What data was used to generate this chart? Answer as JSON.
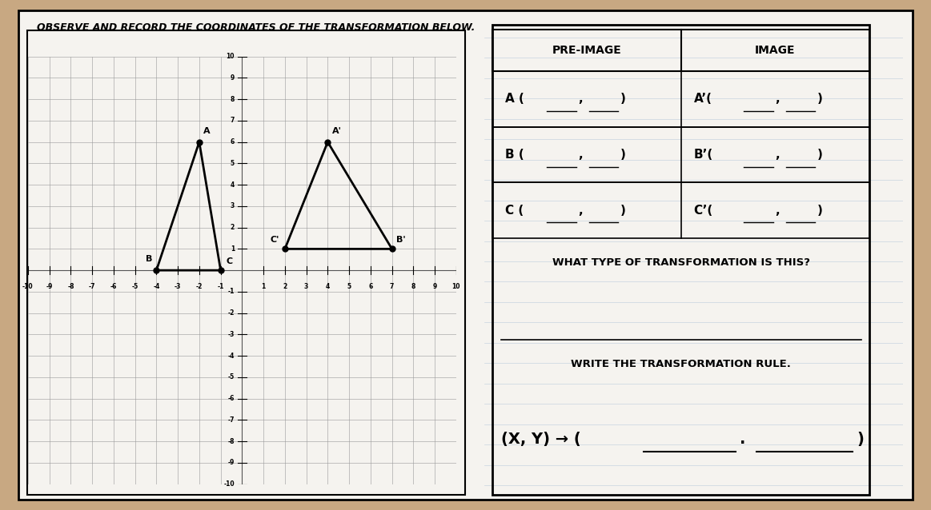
{
  "bg_color": "#c8a882",
  "paper_color": "#f5f3ef",
  "grid_color": "#999999",
  "grid_minor_color": "#cccccc",
  "axis_color": "#000000",
  "title": "OBSERVE AND RECORD THE COORDINATES OF THE TRANSFORMATION BELOW.",
  "grid_range": [
    -10,
    10
  ],
  "pre_image": {
    "A": [
      -2,
      6
    ],
    "B": [
      -4,
      0
    ],
    "C": [
      -1,
      0
    ]
  },
  "image": {
    "A_prime": [
      4,
      6
    ],
    "B_prime": [
      7,
      1
    ],
    "C_prime": [
      2,
      1
    ]
  },
  "table_headers": [
    "PRE-IMAGE",
    "IMAGE"
  ],
  "row_labels_left": [
    "A (",
    "B (",
    "C ("
  ],
  "row_labels_right": [
    "A’(",
    "B’(",
    "C’("
  ],
  "what_type_text": "WHAT TYPE OF TRANSFORMATION IS THIS?",
  "write_rule_text": "WRITE THE TRANSFORMATION RULE.",
  "rule_prefix": "(X, Y) → (",
  "rule_suffix": ")"
}
